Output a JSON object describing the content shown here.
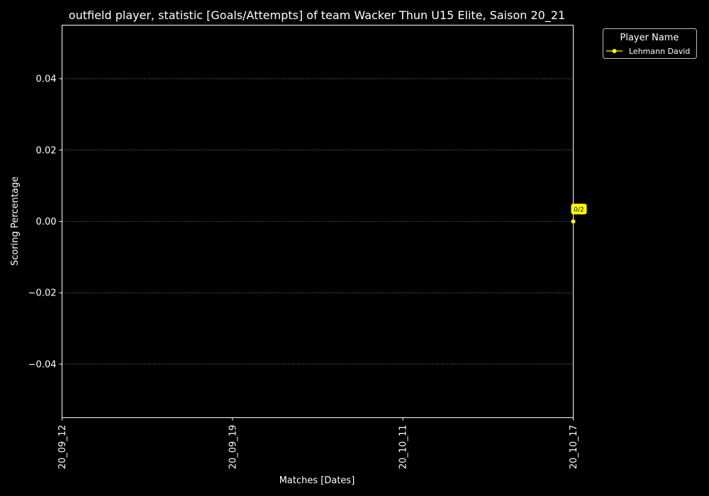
{
  "chart_data": {
    "type": "line",
    "title": "outfield player, statistic [Goals/Attempts] of team Wacker Thun U15 Elite, Saison 20_21",
    "xlabel": "Matches [Dates]",
    "ylabel": "Scoring Percentage",
    "categories": [
      "20_09_12",
      "20_09_19",
      "20_10_11",
      "20_10_17"
    ],
    "ylim": [
      -0.055,
      0.055
    ],
    "yticks": [
      0.04,
      0.02,
      0.0,
      -0.02,
      -0.04
    ],
    "ytick_labels": [
      "0.04",
      "0.02",
      "0.00",
      "−0.02",
      "−0.04"
    ],
    "grid": true,
    "legend": {
      "title": "Player Name",
      "placement": "outside-top-right"
    },
    "series": [
      {
        "name": "Lehmann David",
        "color": "#ffff00",
        "points": [
          {
            "x": "20_10_17",
            "y": 0.0,
            "label": "0/2"
          }
        ]
      }
    ]
  },
  "colors": {
    "background": "#000000",
    "axes": "#ffffff",
    "grid": "#808080",
    "text": "#ffffff",
    "series": "#ffff00"
  }
}
